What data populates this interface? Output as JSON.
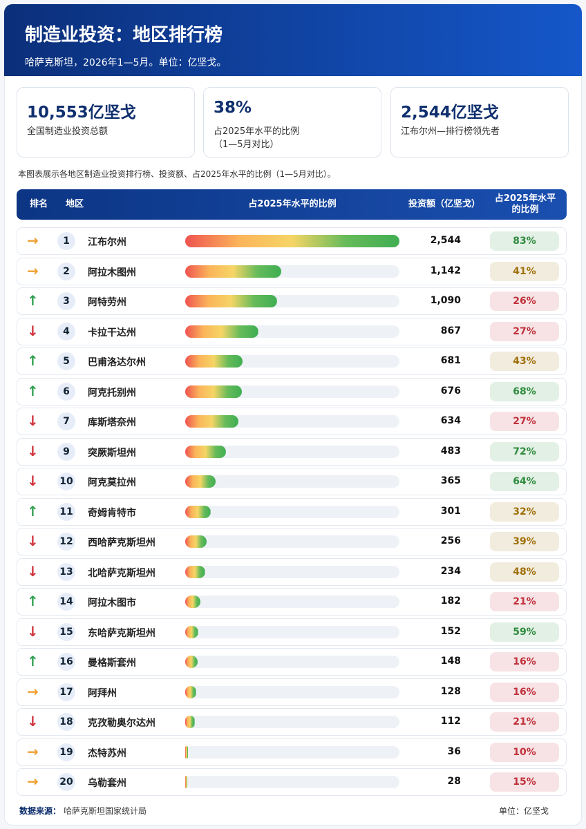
{
  "header": {
    "title": "制造业投资：地区排行榜",
    "subtitle": "哈萨克斯坦，2026年1—5月。单位：亿坚戈。"
  },
  "stats": [
    {
      "value": "10,553亿坚戈",
      "label": "全国制造业投资总额"
    },
    {
      "value": "38%",
      "label": "占2025年水平的比例\n（1—5月对比）"
    },
    {
      "value": "2,544亿坚戈",
      "label": "江布尔州—排行榜领先者"
    }
  ],
  "note": "本图表展示各地区制造业投资排行榜、投资额、占2025年水平的比例（1—5月对比）。",
  "table": {
    "columns": [
      "排名",
      "地区",
      "占2025年水平的比例",
      "投资额（亿坚戈）",
      "占2025年水平的比例"
    ],
    "rows": [
      {
        "trend": "→",
        "trend_color": "#f0a030",
        "rank": 1,
        "region": "江布尔州",
        "value": 2544,
        "value_label": "2,544",
        "pct": "83%",
        "pct_color": "#2e8b3e"
      },
      {
        "trend": "→",
        "trend_color": "#f0a030",
        "rank": 2,
        "region": "阿拉木图州",
        "value": 1142,
        "value_label": "1,142",
        "pct": "41%",
        "pct_color": "#a0700a"
      },
      {
        "trend": "↑",
        "trend_color": "#2e9e4f",
        "rank": 3,
        "region": "阿特劳州",
        "value": 1090,
        "value_label": "1,090",
        "pct": "26%",
        "pct_color": "#c0303a"
      },
      {
        "trend": "↓",
        "trend_color": "#d0323a",
        "rank": 4,
        "region": "卡拉干达州",
        "value": 867,
        "value_label": "867",
        "pct": "27%",
        "pct_color": "#c0303a"
      },
      {
        "trend": "↑",
        "trend_color": "#2e9e4f",
        "rank": 5,
        "region": "巴甫洛达尔州",
        "value": 681,
        "value_label": "681",
        "pct": "43%",
        "pct_color": "#a0700a"
      },
      {
        "trend": "↑",
        "trend_color": "#2e9e4f",
        "rank": 6,
        "region": "阿克托别州",
        "value": 676,
        "value_label": "676",
        "pct": "68%",
        "pct_color": "#2e8b3e"
      },
      {
        "trend": "↓",
        "trend_color": "#d0323a",
        "rank": 7,
        "region": "库斯塔奈州",
        "value": 634,
        "value_label": "634",
        "pct": "27%",
        "pct_color": "#c0303a"
      },
      {
        "trend": "↓",
        "trend_color": "#d0323a",
        "rank": 9,
        "region": "突厥斯坦州",
        "value": 483,
        "value_label": "483",
        "pct": "72%",
        "pct_color": "#2e8b3e"
      },
      {
        "trend": "↓",
        "trend_color": "#d0323a",
        "rank": 10,
        "region": "阿克莫拉州",
        "value": 365,
        "value_label": "365",
        "pct": "64%",
        "pct_color": "#2e8b3e"
      },
      {
        "trend": "↑",
        "trend_color": "#2e9e4f",
        "rank": 11,
        "region": "奇姆肯特市",
        "value": 301,
        "value_label": "301",
        "pct": "32%",
        "pct_color": "#a0700a"
      },
      {
        "trend": "↓",
        "trend_color": "#d0323a",
        "rank": 12,
        "region": "西哈萨克斯坦州",
        "value": 256,
        "value_label": "256",
        "pct": "39%",
        "pct_color": "#a0700a"
      },
      {
        "trend": "↓",
        "trend_color": "#d0323a",
        "rank": 13,
        "region": "北哈萨克斯坦州",
        "value": 234,
        "value_label": "234",
        "pct": "48%",
        "pct_color": "#a0700a"
      },
      {
        "trend": "↑",
        "trend_color": "#2e9e4f",
        "rank": 14,
        "region": "阿拉木图市",
        "value": 182,
        "value_label": "182",
        "pct": "21%",
        "pct_color": "#c0303a"
      },
      {
        "trend": "↓",
        "trend_color": "#d0323a",
        "rank": 15,
        "region": "东哈萨克斯坦州",
        "value": 152,
        "value_label": "152",
        "pct": "59%",
        "pct_color": "#2e8b3e"
      },
      {
        "trend": "↑",
        "trend_color": "#2e9e4f",
        "rank": 16,
        "region": "曼格斯套州",
        "value": 148,
        "value_label": "148",
        "pct": "16%",
        "pct_color": "#c0303a"
      },
      {
        "trend": "→",
        "trend_color": "#f0a030",
        "rank": 17,
        "region": "阿拜州",
        "value": 128,
        "value_label": "128",
        "pct": "16%",
        "pct_color": "#c0303a"
      },
      {
        "trend": "↓",
        "trend_color": "#d0323a",
        "rank": 18,
        "region": "克孜勒奥尔达州",
        "value": 112,
        "value_label": "112",
        "pct": "21%",
        "pct_color": "#c0303a"
      },
      {
        "trend": "→",
        "trend_color": "#f0a030",
        "rank": 19,
        "region": "杰特苏州",
        "value": 36,
        "value_label": "36",
        "pct": "10%",
        "pct_color": "#c0303a"
      },
      {
        "trend": "→",
        "trend_color": "#f0a030",
        "rank": 20,
        "region": "乌勒套州",
        "value": 28,
        "value_label": "28",
        "pct": "15%",
        "pct_color": "#c0303a"
      }
    ]
  },
  "footer": {
    "source_label": "数据来源：",
    "source": "哈萨克斯坦国家统计局",
    "unit": "单位：亿坚戈"
  }
}
